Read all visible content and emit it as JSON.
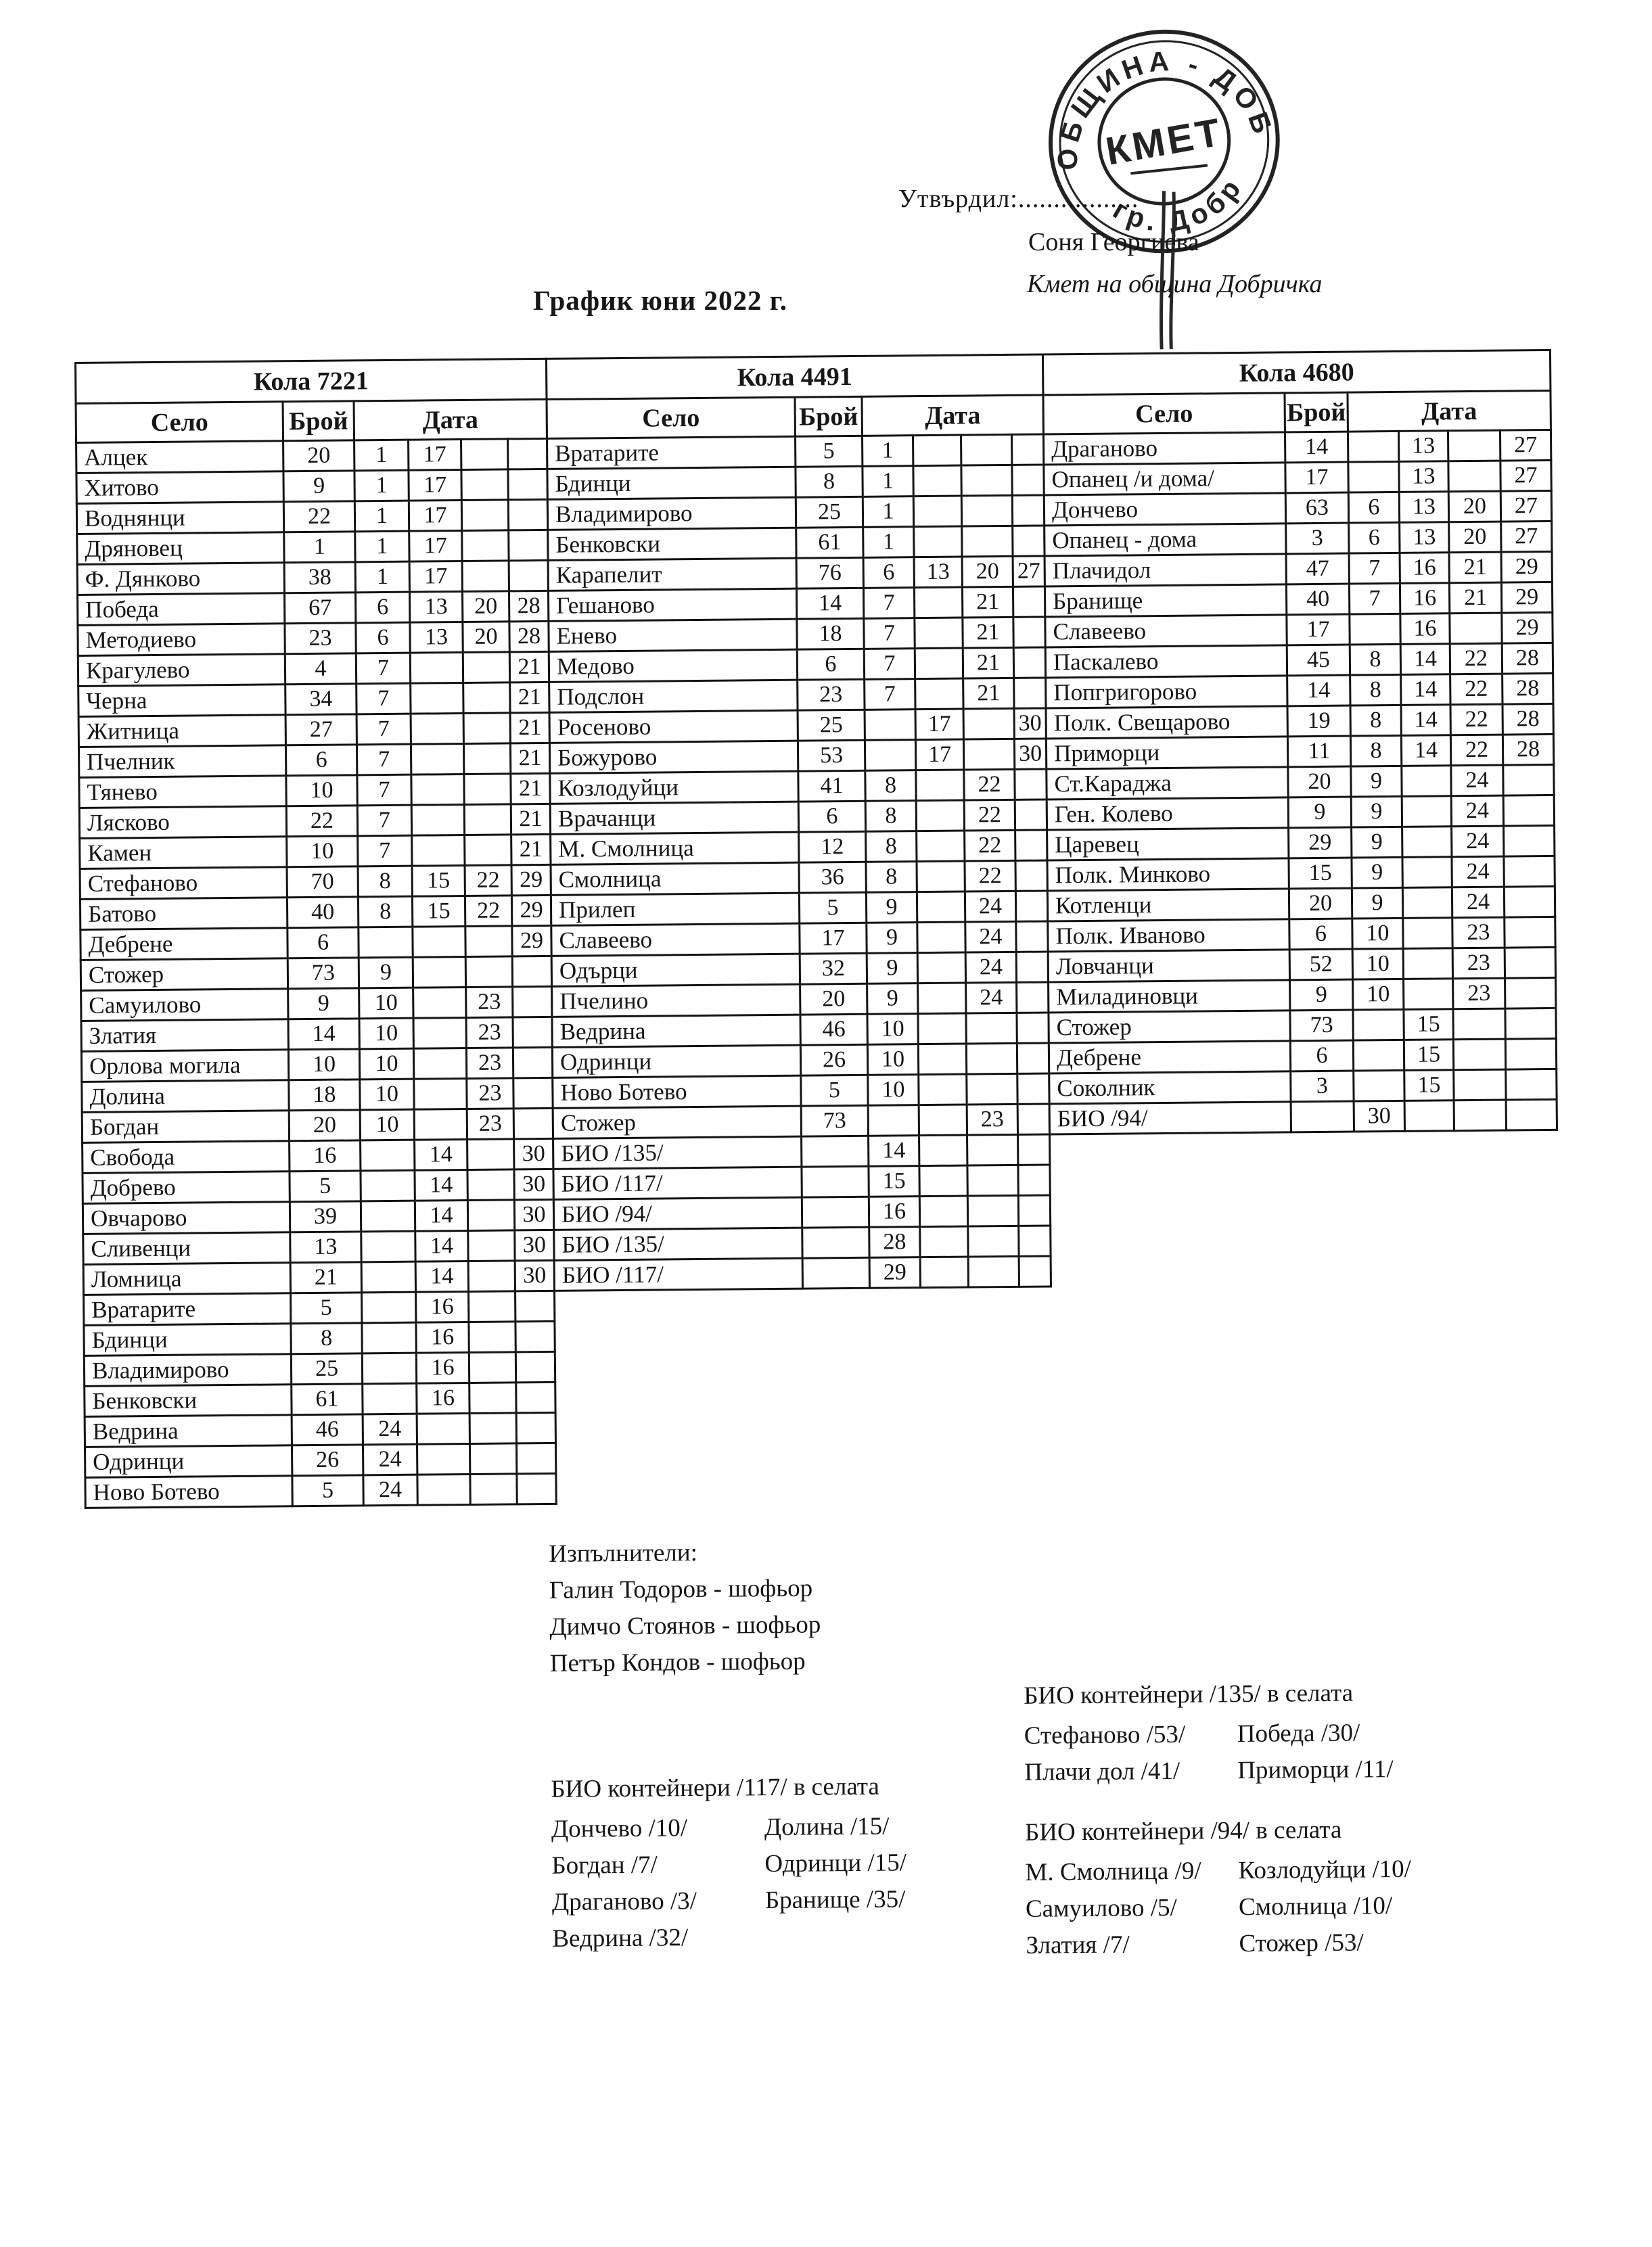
{
  "approval": {
    "label": "Утвърдил:.................",
    "name": "Соня Георгиева",
    "role": "Кмет  на община Добричка"
  },
  "stamp": {
    "ring_text_top": "ОБЩИНА - ДОБРИЧКА",
    "ring_text_bottom": "гр. Добрич",
    "center_text": "КМЕТ"
  },
  "title": "График юни 2022 г.",
  "table_headers": {
    "village": "Село",
    "count": "Брой",
    "date": "Дата"
  },
  "tables": [
    {
      "title": "Кола 7221",
      "rows": [
        {
          "village": "Алцек",
          "count": "20",
          "dates": [
            "1",
            "17",
            "",
            ""
          ]
        },
        {
          "village": "Хитово",
          "count": "9",
          "dates": [
            "1",
            "17",
            "",
            ""
          ]
        },
        {
          "village": "Воднянци",
          "count": "22",
          "dates": [
            "1",
            "17",
            "",
            ""
          ]
        },
        {
          "village": "Дряновец",
          "count": "1",
          "dates": [
            "1",
            "17",
            "",
            ""
          ]
        },
        {
          "village": "Ф. Дянково",
          "count": "38",
          "dates": [
            "1",
            "17",
            "",
            ""
          ]
        },
        {
          "village": "Победа",
          "count": "67",
          "dates": [
            "6",
            "13",
            "20",
            "28"
          ]
        },
        {
          "village": "Методиево",
          "count": "23",
          "dates": [
            "6",
            "13",
            "20",
            "28"
          ]
        },
        {
          "village": "Крагулево",
          "count": "4",
          "dates": [
            "7",
            "",
            "",
            "21"
          ]
        },
        {
          "village": "Черна",
          "count": "34",
          "dates": [
            "7",
            "",
            "",
            "21"
          ]
        },
        {
          "village": "Житница",
          "count": "27",
          "dates": [
            "7",
            "",
            "",
            "21"
          ]
        },
        {
          "village": "Пчелник",
          "count": "6",
          "dates": [
            "7",
            "",
            "",
            "21"
          ]
        },
        {
          "village": "Тянево",
          "count": "10",
          "dates": [
            "7",
            "",
            "",
            "21"
          ]
        },
        {
          "village": "Лясково",
          "count": "22",
          "dates": [
            "7",
            "",
            "",
            "21"
          ]
        },
        {
          "village": "Камен",
          "count": "10",
          "dates": [
            "7",
            "",
            "",
            "21"
          ]
        },
        {
          "village": "Стефаново",
          "count": "70",
          "dates": [
            "8",
            "15",
            "22",
            "29"
          ]
        },
        {
          "village": "Батово",
          "count": "40",
          "dates": [
            "8",
            "15",
            "22",
            "29"
          ]
        },
        {
          "village": "Дебрене",
          "count": "6",
          "dates": [
            "",
            "",
            "",
            "29"
          ]
        },
        {
          "village": "Стожер",
          "count": "73",
          "dates": [
            "9",
            "",
            "",
            ""
          ]
        },
        {
          "village": "Самуилово",
          "count": "9",
          "dates": [
            "10",
            "",
            "23",
            ""
          ]
        },
        {
          "village": "Златия",
          "count": "14",
          "dates": [
            "10",
            "",
            "23",
            ""
          ]
        },
        {
          "village": "Орлова могила",
          "count": "10",
          "dates": [
            "10",
            "",
            "23",
            ""
          ]
        },
        {
          "village": "Долина",
          "count": "18",
          "dates": [
            "10",
            "",
            "23",
            ""
          ]
        },
        {
          "village": "Богдан",
          "count": "20",
          "dates": [
            "10",
            "",
            "23",
            ""
          ]
        },
        {
          "village": "Свобода",
          "count": "16",
          "dates": [
            "",
            "14",
            "",
            "30"
          ]
        },
        {
          "village": "Добрево",
          "count": "5",
          "dates": [
            "",
            "14",
            "",
            "30"
          ]
        },
        {
          "village": "Овчарово",
          "count": "39",
          "dates": [
            "",
            "14",
            "",
            "30"
          ]
        },
        {
          "village": "Сливенци",
          "count": "13",
          "dates": [
            "",
            "14",
            "",
            "30"
          ]
        },
        {
          "village": "Ломница",
          "count": "21",
          "dates": [
            "",
            "14",
            "",
            "30"
          ]
        },
        {
          "village": "Вратарите",
          "count": "5",
          "dates": [
            "",
            "16",
            "",
            ""
          ]
        },
        {
          "village": "Бдинци",
          "count": "8",
          "dates": [
            "",
            "16",
            "",
            ""
          ]
        },
        {
          "village": "Владимирово",
          "count": "25",
          "dates": [
            "",
            "16",
            "",
            ""
          ]
        },
        {
          "village": "Бенковски",
          "count": "61",
          "dates": [
            "",
            "16",
            "",
            ""
          ]
        },
        {
          "village": "Ведрина",
          "count": "46",
          "dates": [
            "24",
            "",
            "",
            ""
          ]
        },
        {
          "village": "Одринци",
          "count": "26",
          "dates": [
            "24",
            "",
            "",
            ""
          ]
        },
        {
          "village": "Ново Ботево",
          "count": "5",
          "dates": [
            "24",
            "",
            "",
            ""
          ]
        }
      ]
    },
    {
      "title": "Кола 4491",
      "rows": [
        {
          "village": "Вратарите",
          "count": "5",
          "dates": [
            "1",
            "",
            "",
            ""
          ]
        },
        {
          "village": "Бдинци",
          "count": "8",
          "dates": [
            "1",
            "",
            "",
            ""
          ]
        },
        {
          "village": "Владимирово",
          "count": "25",
          "dates": [
            "1",
            "",
            "",
            ""
          ]
        },
        {
          "village": "Бенковски",
          "count": "61",
          "dates": [
            "1",
            "",
            "",
            ""
          ]
        },
        {
          "village": "Карапелит",
          "count": "76",
          "dates": [
            "6",
            "13",
            "20",
            "27"
          ]
        },
        {
          "village": "Гешаново",
          "count": "14",
          "dates": [
            "7",
            "",
            "21",
            ""
          ]
        },
        {
          "village": "Енево",
          "count": "18",
          "dates": [
            "7",
            "",
            "21",
            ""
          ]
        },
        {
          "village": "Медово",
          "count": "6",
          "dates": [
            "7",
            "",
            "21",
            ""
          ]
        },
        {
          "village": "Подслон",
          "count": "23",
          "dates": [
            "7",
            "",
            "21",
            ""
          ]
        },
        {
          "village": "Росеново",
          "count": "25",
          "dates": [
            "",
            "17",
            "",
            "30"
          ]
        },
        {
          "village": "Божурово",
          "count": "53",
          "dates": [
            "",
            "17",
            "",
            "30"
          ]
        },
        {
          "village": "Козлодуйци",
          "count": "41",
          "dates": [
            "8",
            "",
            "22",
            ""
          ]
        },
        {
          "village": "Врачанци",
          "count": "6",
          "dates": [
            "8",
            "",
            "22",
            ""
          ]
        },
        {
          "village": "М. Смолница",
          "count": "12",
          "dates": [
            "8",
            "",
            "22",
            ""
          ]
        },
        {
          "village": "Смолница",
          "count": "36",
          "dates": [
            "8",
            "",
            "22",
            ""
          ]
        },
        {
          "village": "Прилеп",
          "count": "5",
          "dates": [
            "9",
            "",
            "24",
            ""
          ]
        },
        {
          "village": "Славеево",
          "count": "17",
          "dates": [
            "9",
            "",
            "24",
            ""
          ]
        },
        {
          "village": "Одърци",
          "count": "32",
          "dates": [
            "9",
            "",
            "24",
            ""
          ]
        },
        {
          "village": "Пчелино",
          "count": "20",
          "dates": [
            "9",
            "",
            "24",
            ""
          ]
        },
        {
          "village": "Ведрина",
          "count": "46",
          "dates": [
            "10",
            "",
            "",
            ""
          ]
        },
        {
          "village": "Одринци",
          "count": "26",
          "dates": [
            "10",
            "",
            "",
            ""
          ]
        },
        {
          "village": "Ново Ботево",
          "count": "5",
          "dates": [
            "10",
            "",
            "",
            ""
          ]
        },
        {
          "village": "Стожер",
          "count": "73",
          "dates": [
            "",
            "",
            "23",
            ""
          ]
        },
        {
          "village": "БИО /135/",
          "count": "",
          "dates": [
            "14",
            "",
            "",
            ""
          ]
        },
        {
          "village": "БИО /117/",
          "count": "",
          "dates": [
            "15",
            "",
            "",
            ""
          ]
        },
        {
          "village": "БИО /94/",
          "count": "",
          "dates": [
            "16",
            "",
            "",
            ""
          ]
        },
        {
          "village": "БИО /135/",
          "count": "",
          "dates": [
            "28",
            "",
            "",
            ""
          ]
        },
        {
          "village": "БИО /117/",
          "count": "",
          "dates": [
            "29",
            "",
            "",
            ""
          ]
        }
      ]
    },
    {
      "title": "Кола 4680",
      "rows": [
        {
          "village": "Драганово",
          "count": "14",
          "dates": [
            "",
            "13",
            "",
            "27"
          ]
        },
        {
          "village": "Опанец /и дома/",
          "count": "17",
          "dates": [
            "",
            "13",
            "",
            "27"
          ]
        },
        {
          "village": "Дончево",
          "count": "63",
          "dates": [
            "6",
            "13",
            "20",
            "27"
          ]
        },
        {
          "village": "Опанец - дома",
          "count": "3",
          "dates": [
            "6",
            "13",
            "20",
            "27"
          ]
        },
        {
          "village": "Плачидол",
          "count": "47",
          "dates": [
            "7",
            "16",
            "21",
            "29"
          ]
        },
        {
          "village": "Бранище",
          "count": "40",
          "dates": [
            "7",
            "16",
            "21",
            "29"
          ]
        },
        {
          "village": "Славеево",
          "count": "17",
          "dates": [
            "",
            "16",
            "",
            "29"
          ]
        },
        {
          "village": "Паскалево",
          "count": "45",
          "dates": [
            "8",
            "14",
            "22",
            "28"
          ]
        },
        {
          "village": "Попгригорово",
          "count": "14",
          "dates": [
            "8",
            "14",
            "22",
            "28"
          ]
        },
        {
          "village": "Полк. Свещарово",
          "count": "19",
          "dates": [
            "8",
            "14",
            "22",
            "28"
          ]
        },
        {
          "village": "Приморци",
          "count": "11",
          "dates": [
            "8",
            "14",
            "22",
            "28"
          ]
        },
        {
          "village": "Ст.Караджа",
          "count": "20",
          "dates": [
            "9",
            "",
            "24",
            ""
          ]
        },
        {
          "village": "Ген. Колево",
          "count": "9",
          "dates": [
            "9",
            "",
            "24",
            ""
          ]
        },
        {
          "village": "Царевец",
          "count": "29",
          "dates": [
            "9",
            "",
            "24",
            ""
          ]
        },
        {
          "village": "Полк. Минково",
          "count": "15",
          "dates": [
            "9",
            "",
            "24",
            ""
          ]
        },
        {
          "village": "Котленци",
          "count": "20",
          "dates": [
            "9",
            "",
            "24",
            ""
          ]
        },
        {
          "village": "Полк. Иваново",
          "count": "6",
          "dates": [
            "10",
            "",
            "23",
            ""
          ]
        },
        {
          "village": "Ловчанци",
          "count": "52",
          "dates": [
            "10",
            "",
            "23",
            ""
          ]
        },
        {
          "village": "Миладиновци",
          "count": "9",
          "dates": [
            "10",
            "",
            "23",
            ""
          ]
        },
        {
          "village": "Стожер",
          "count": "73",
          "dates": [
            "",
            "15",
            "",
            ""
          ]
        },
        {
          "village": "Дебрене",
          "count": "6",
          "dates": [
            "",
            "15",
            "",
            ""
          ]
        },
        {
          "village": "Соколник",
          "count": "3",
          "dates": [
            "",
            "15",
            "",
            ""
          ]
        },
        {
          "village": "БИО /94/",
          "count": "",
          "dates": [
            "30",
            "",
            "",
            ""
          ]
        }
      ]
    }
  ],
  "executors": {
    "heading": "Изпълнители:",
    "names": [
      "Галин Тодоров - шофьор",
      "Димчо Стоянов - шофьор",
      "Петър Кондов - шофьор"
    ]
  },
  "bio_notes": [
    {
      "title": "БИО контейнери /135/ в селата",
      "rows": [
        [
          "Стефаново /53/",
          "Победа /30/"
        ],
        [
          "Плачи дол /41/",
          "Приморци /11/"
        ]
      ]
    },
    {
      "title": "БИО контейнери /117/ в селата",
      "rows": [
        [
          "Дончево /10/",
          "Долина /15/"
        ],
        [
          "Богдан /7/",
          "Одринци /15/"
        ],
        [
          "Драганово /3/",
          "Бранище /35/"
        ],
        [
          "Ведрина /32/",
          ""
        ]
      ]
    },
    {
      "title": "БИО контейнери /94/ в селата",
      "rows": [
        [
          "М. Смолница /9/",
          "Козлодуйци /10/"
        ],
        [
          "Самуилово /5/",
          "Смолница /10/"
        ],
        [
          "Златия /7/",
          "Стожер /53/"
        ]
      ]
    }
  ]
}
